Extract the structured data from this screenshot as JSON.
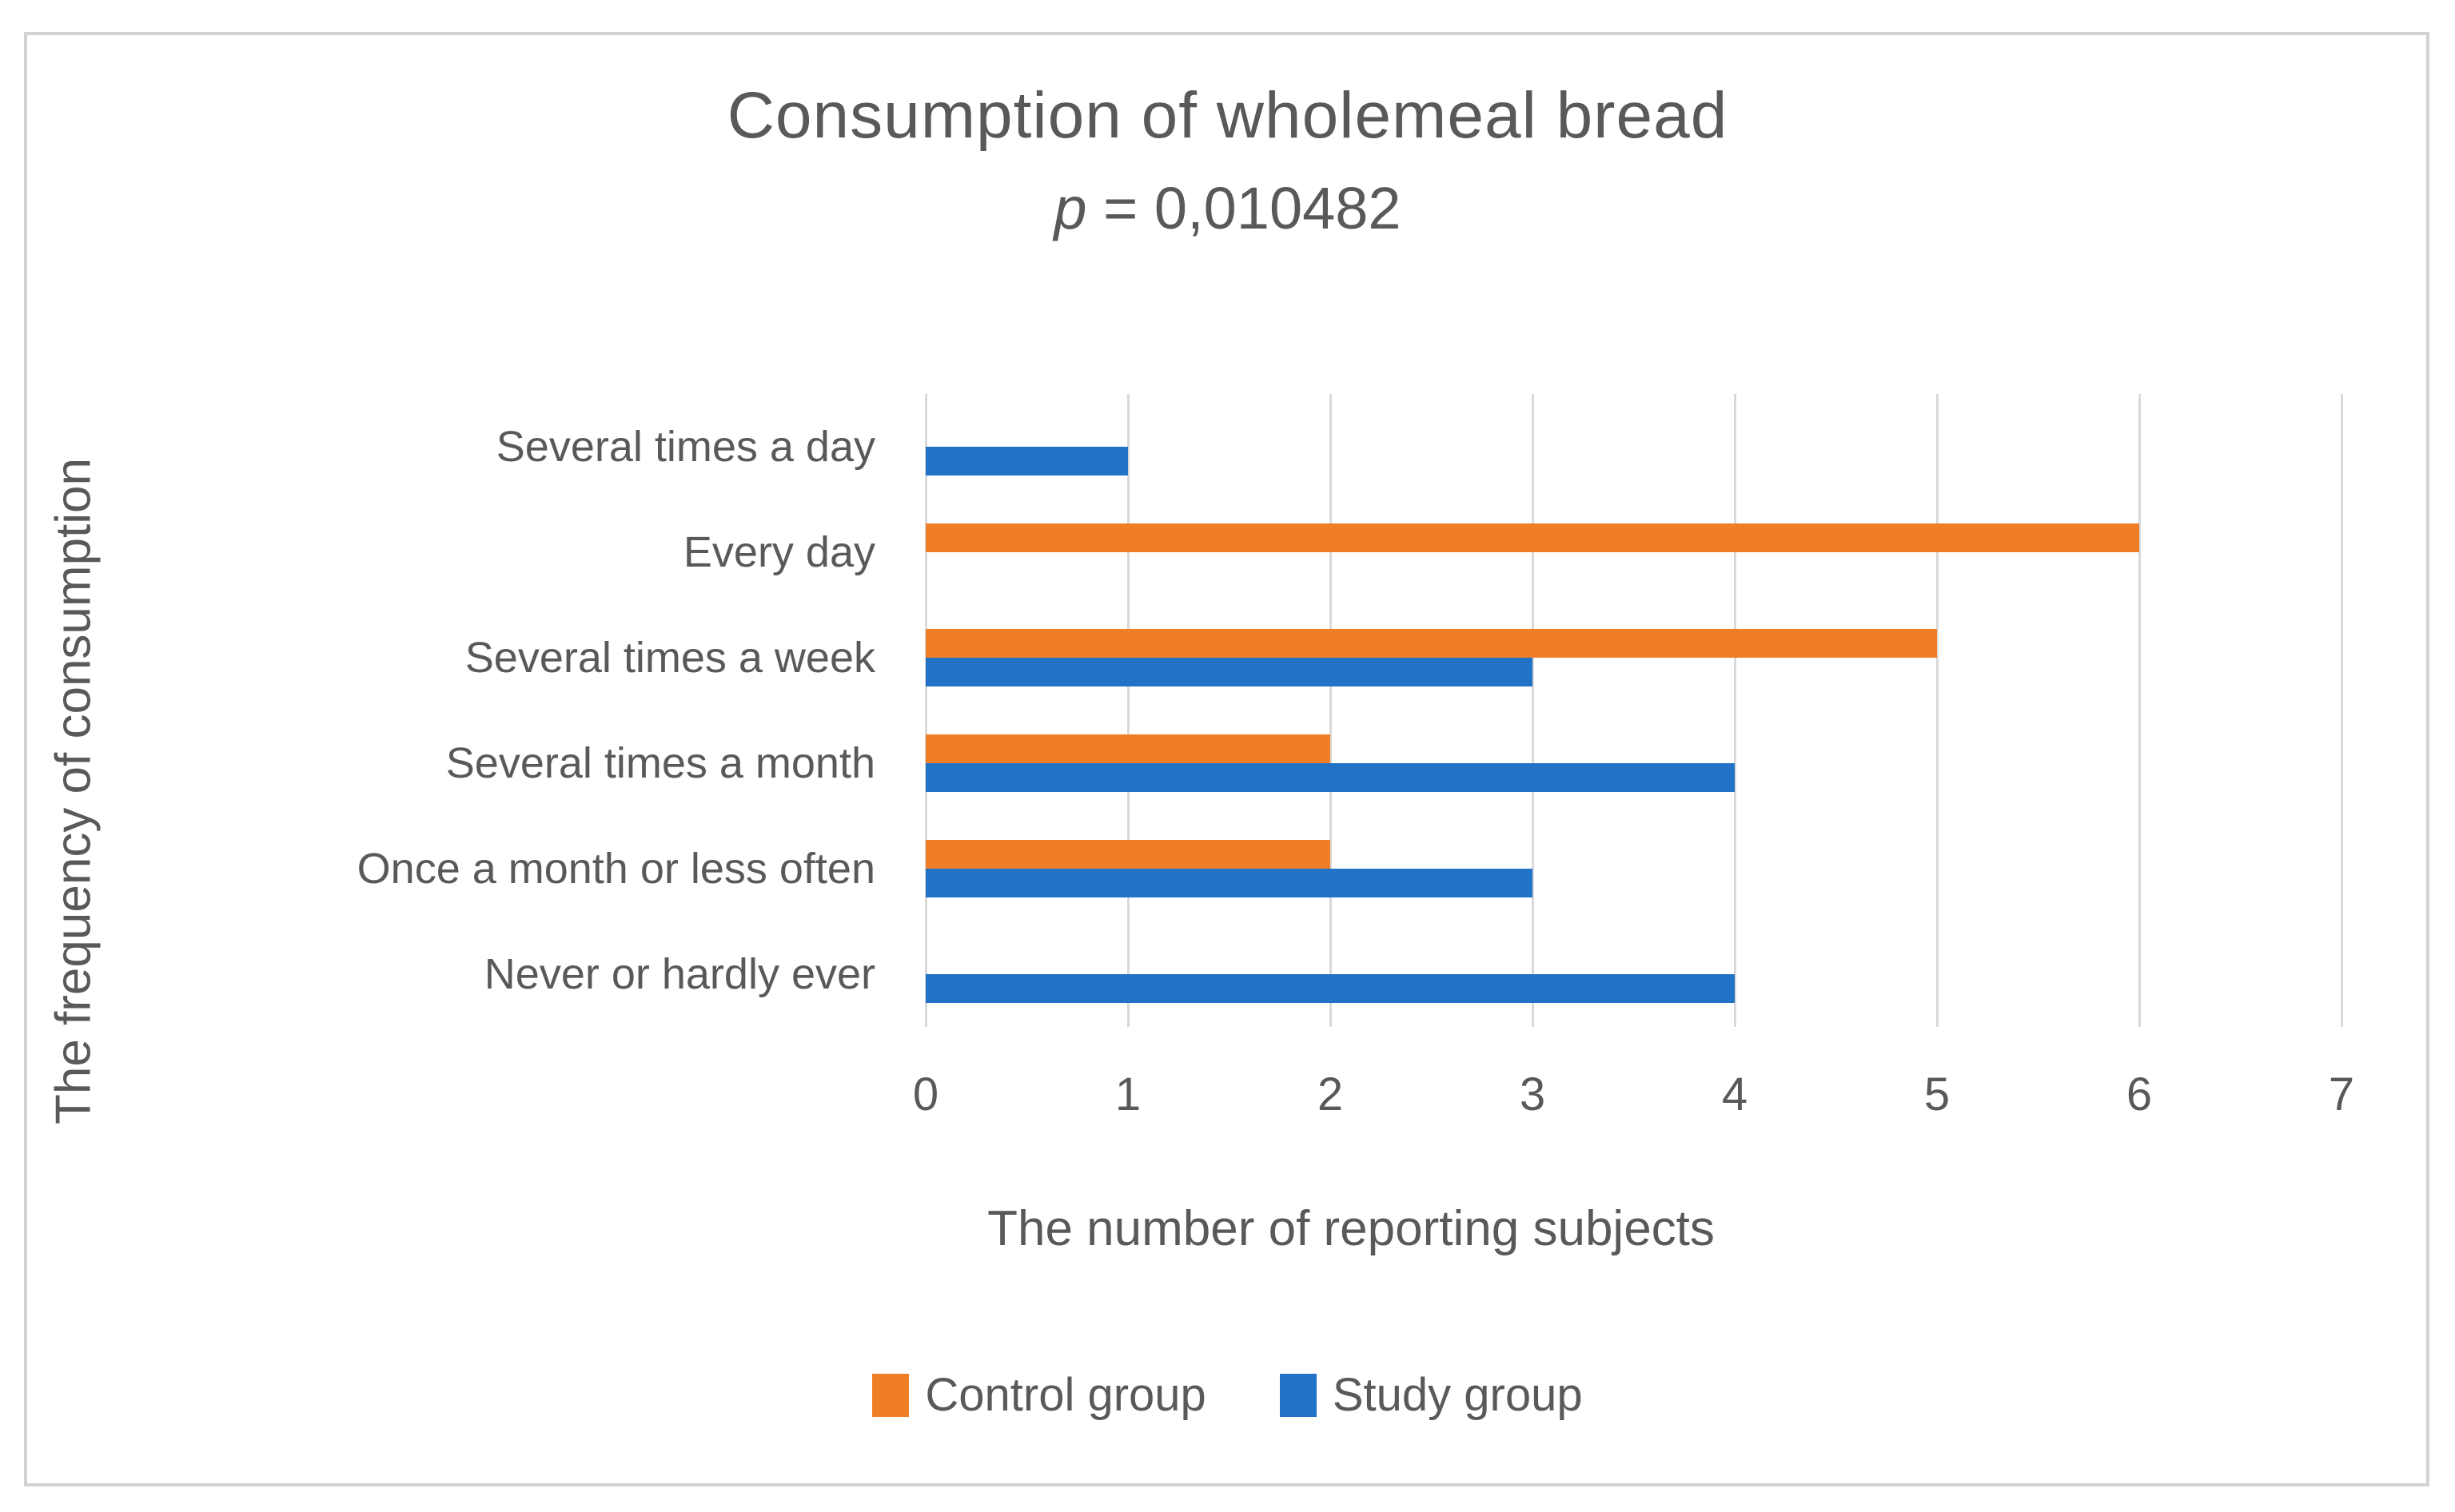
{
  "figure": {
    "title": "Consumption of wholemeal bread",
    "subtitle_italic": "p",
    "subtitle_rest": " = 0,010482"
  },
  "chart_data": {
    "type": "bar",
    "orientation": "horizontal",
    "title": "Consumption of wholemeal bread",
    "subtitle": "p = 0,010482",
    "categories": [
      "Several times a day",
      "Every day",
      "Several times a week",
      "Several times a month",
      "Once a month or less often",
      "Never or hardly ever"
    ],
    "series": [
      {
        "name": "Control group",
        "color": "#F07E27",
        "values": [
          0,
          6,
          5,
          2,
          2,
          0
        ]
      },
      {
        "name": "Study group",
        "color": "#2272C8",
        "values": [
          1,
          0,
          3,
          4,
          3,
          4
        ]
      }
    ],
    "xlabel": "The number of reporting subjects",
    "ylabel": "The frequency of consumption",
    "xlim": [
      0,
      7
    ],
    "xticks": [
      0,
      1,
      2,
      3,
      4,
      5,
      6,
      7
    ],
    "grid": "vertical",
    "grid_color": "#D9D9D9",
    "text_color": "#595959",
    "legend_position": "bottom"
  }
}
